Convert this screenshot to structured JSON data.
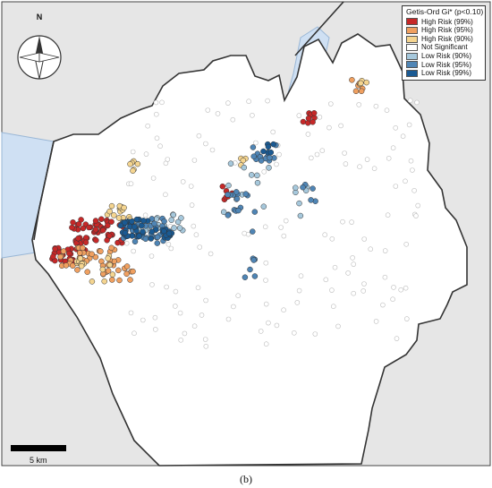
{
  "legend": {
    "title": "Getis-Ord Gi* (p<0.10)",
    "items": [
      {
        "label": "High Risk (99%)",
        "color": "#c62828"
      },
      {
        "label": "High Risk (95%)",
        "color": "#f0a060"
      },
      {
        "label": "High Risk (90%)",
        "color": "#f5d590"
      },
      {
        "label": "Not Significant",
        "color": "#ffffff"
      },
      {
        "label": "Low Risk (90%)",
        "color": "#a6c8dc"
      },
      {
        "label": "Low Risk (95%)",
        "color": "#4f85b5"
      },
      {
        "label": "Low Risk (99%)",
        "color": "#1a5a93"
      }
    ]
  },
  "north_arrow": {
    "label": "N"
  },
  "scale_bar": {
    "label": "5 km"
  },
  "caption": "(b)",
  "colors": {
    "outside": "#e6e6e6",
    "water": "#cfe0f3",
    "study_area": "#ffffff",
    "border": "#333333"
  }
}
